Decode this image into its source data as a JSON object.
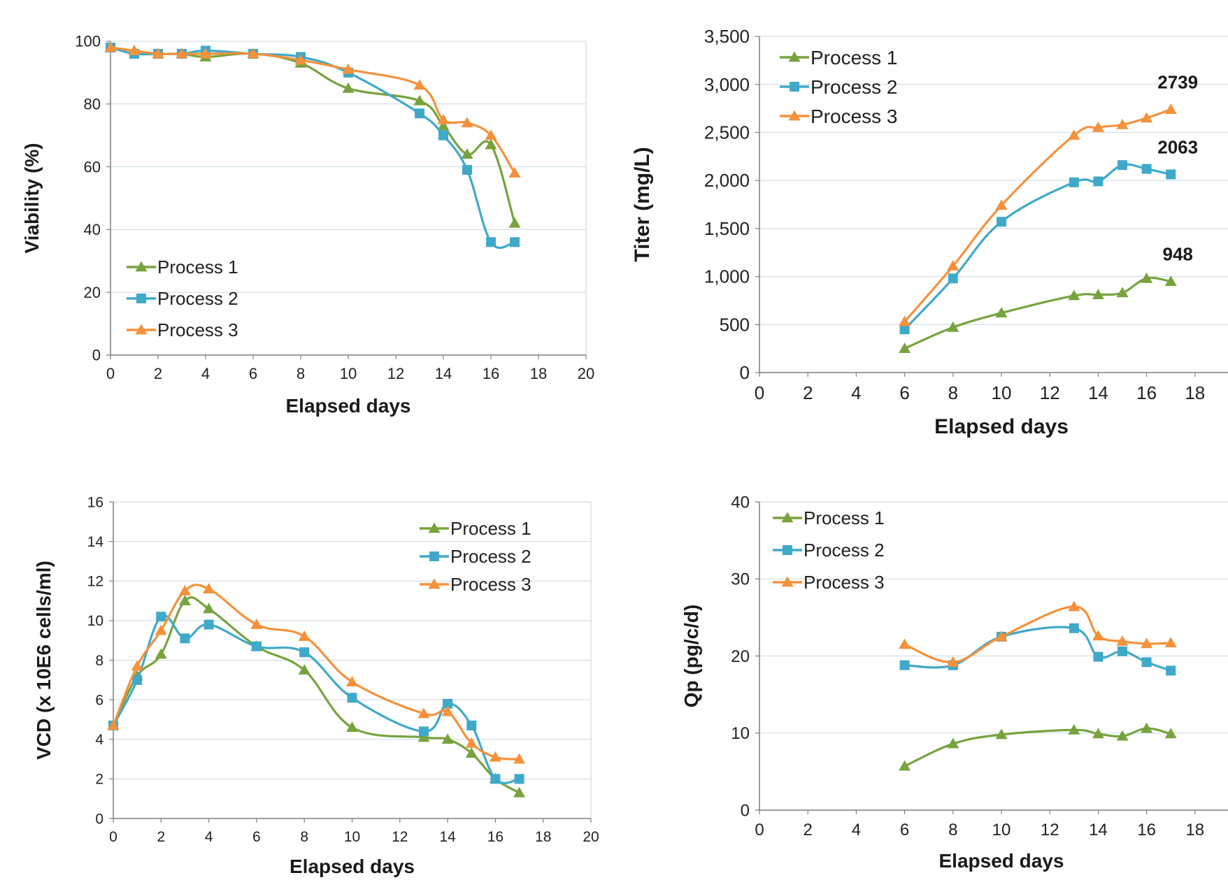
{
  "colors": {
    "process1": "#77a33e",
    "process2": "#3fa9c9",
    "process3": "#f5913b",
    "gridline": "#c9d9e3",
    "axis": "#7f7f7f"
  },
  "chart_data": [
    {
      "type": "line",
      "xlabel": "Elapsed days",
      "ylabel": "Viability (%)",
      "xlim": [
        0,
        20
      ],
      "ylim": [
        0,
        100
      ],
      "xticks": [
        "0",
        "2",
        "4",
        "6",
        "8",
        "10",
        "12",
        "14",
        "16",
        "18",
        "20"
      ],
      "yticks": [
        "0",
        "20",
        "40",
        "60",
        "80",
        "100"
      ],
      "grid": true,
      "legend_position": "bottom-left",
      "series": [
        {
          "name": "Process 1",
          "marker": "triangle",
          "x": [
            0,
            1,
            2,
            3,
            4,
            6,
            8,
            10,
            13,
            14,
            15,
            16,
            17
          ],
          "y": [
            98,
            97,
            96,
            96,
            95,
            96,
            93,
            85,
            81,
            73,
            64,
            67,
            42
          ]
        },
        {
          "name": "Process 2",
          "marker": "square",
          "x": [
            0,
            1,
            2,
            3,
            4,
            6,
            8,
            10,
            13,
            14,
            15,
            16,
            17
          ],
          "y": [
            98,
            96,
            96,
            96,
            97,
            96,
            95,
            90,
            77,
            70,
            59,
            36,
            36
          ]
        },
        {
          "name": "Process 3",
          "marker": "triangle",
          "x": [
            0,
            1,
            2,
            3,
            4,
            6,
            8,
            10,
            13,
            14,
            15,
            16,
            17
          ],
          "y": [
            98,
            97,
            96,
            96,
            96,
            96,
            94,
            91,
            86,
            75,
            74,
            70,
            58
          ]
        }
      ],
      "annotations": []
    },
    {
      "type": "line",
      "xlabel": "Elapsed days",
      "ylabel": "Titer (mg/L)",
      "xlim": [
        0,
        20
      ],
      "ylim": [
        0,
        3500
      ],
      "xticks": [
        "0",
        "2",
        "4",
        "6",
        "8",
        "10",
        "12",
        "14",
        "16",
        "18",
        "20"
      ],
      "yticks": [
        "0",
        "500",
        "1,000",
        "1,500",
        "2,000",
        "2,500",
        "3,000",
        "3,500"
      ],
      "grid": true,
      "legend_position": "top-left",
      "series": [
        {
          "name": "Process 1",
          "marker": "triangle",
          "x": [
            6,
            8,
            10,
            13,
            14,
            15,
            16,
            17
          ],
          "y": [
            250,
            470,
            620,
            800,
            810,
            830,
            980,
            948
          ]
        },
        {
          "name": "Process 2",
          "marker": "square",
          "x": [
            6,
            8,
            10,
            13,
            14,
            15,
            16,
            17
          ],
          "y": [
            450,
            980,
            1570,
            1980,
            1990,
            2160,
            2120,
            2063
          ]
        },
        {
          "name": "Process 3",
          "marker": "triangle",
          "x": [
            6,
            8,
            10,
            13,
            14,
            15,
            16,
            17
          ],
          "y": [
            530,
            1110,
            1740,
            2470,
            2550,
            2580,
            2650,
            2739
          ]
        }
      ],
      "annotations": [
        {
          "text": "2739",
          "x": 17,
          "y": 2739,
          "series": 2
        },
        {
          "text": "2063",
          "x": 17,
          "y": 2063,
          "series": 1
        },
        {
          "text": "948",
          "x": 17,
          "y": 948,
          "series": 0
        }
      ]
    },
    {
      "type": "line",
      "xlabel": "Elapsed days",
      "ylabel": "VCD (x 10E6 cells/ml)",
      "xlim": [
        0,
        20
      ],
      "ylim": [
        0,
        16
      ],
      "xticks": [
        "0",
        "2",
        "4",
        "6",
        "8",
        "10",
        "12",
        "14",
        "16",
        "18",
        "20"
      ],
      "yticks": [
        "0",
        "2",
        "4",
        "6",
        "8",
        "10",
        "12",
        "14",
        "16"
      ],
      "grid": true,
      "legend_position": "top-right",
      "series": [
        {
          "name": "Process 1",
          "marker": "triangle",
          "x": [
            0,
            1,
            2,
            3,
            4,
            6,
            8,
            10,
            13,
            14,
            15,
            16,
            17
          ],
          "y": [
            4.7,
            7.2,
            8.3,
            11.0,
            10.6,
            8.7,
            7.5,
            4.6,
            4.1,
            4.0,
            3.3,
            2.0,
            1.3
          ]
        },
        {
          "name": "Process 2",
          "marker": "square",
          "x": [
            0,
            1,
            2,
            3,
            4,
            6,
            8,
            10,
            13,
            14,
            15,
            16,
            17
          ],
          "y": [
            4.7,
            7.0,
            10.2,
            9.1,
            9.8,
            8.7,
            8.4,
            6.1,
            4.4,
            5.8,
            4.7,
            2.0,
            2.0
          ]
        },
        {
          "name": "Process 3",
          "marker": "triangle",
          "x": [
            0,
            1,
            2,
            3,
            4,
            6,
            8,
            10,
            13,
            14,
            15,
            16,
            17
          ],
          "y": [
            4.7,
            7.7,
            9.5,
            11.5,
            11.6,
            9.8,
            9.2,
            6.9,
            5.3,
            5.4,
            3.8,
            3.1,
            3.0
          ]
        }
      ],
      "annotations": []
    },
    {
      "type": "line",
      "xlabel": "Elapsed days",
      "ylabel": "Qp (pg/c/d)",
      "xlim": [
        0,
        20
      ],
      "ylim": [
        0,
        40
      ],
      "xticks": [
        "0",
        "2",
        "4",
        "6",
        "8",
        "10",
        "12",
        "14",
        "16",
        "18",
        "20"
      ],
      "yticks": [
        "0",
        "10",
        "20",
        "30",
        "40"
      ],
      "grid": true,
      "legend_position": "top-left",
      "series": [
        {
          "name": "Process 1",
          "marker": "triangle",
          "x": [
            6,
            8,
            10,
            13,
            14,
            15,
            16,
            17
          ],
          "y": [
            5.7,
            8.6,
            9.8,
            10.4,
            9.9,
            9.6,
            10.6,
            9.9
          ]
        },
        {
          "name": "Process 2",
          "marker": "square",
          "x": [
            6,
            8,
            10,
            13,
            14,
            15,
            16,
            17
          ],
          "y": [
            18.8,
            18.8,
            22.5,
            23.6,
            19.9,
            20.6,
            19.2,
            18.1
          ]
        },
        {
          "name": "Process 3",
          "marker": "triangle",
          "x": [
            6,
            8,
            10,
            13,
            14,
            15,
            16,
            17
          ],
          "y": [
            21.5,
            19.2,
            22.5,
            26.4,
            22.6,
            21.9,
            21.6,
            21.7
          ]
        }
      ],
      "annotations": []
    }
  ]
}
